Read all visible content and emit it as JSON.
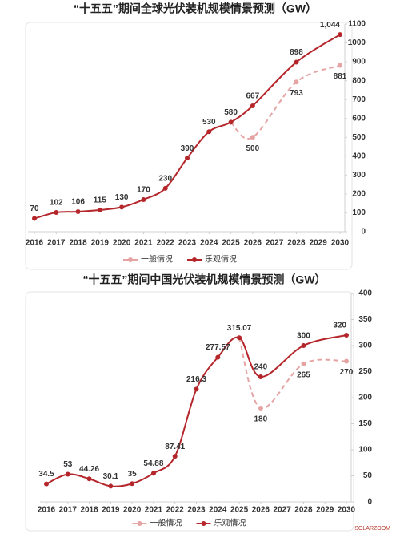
{
  "chart_data": [
    {
      "type": "line",
      "title": "“十五五”期间全球光伏装机规模情景预测（GW）",
      "x": [
        2016,
        2017,
        2018,
        2019,
        2020,
        2021,
        2022,
        2023,
        2024,
        2025,
        2026,
        2028,
        2030
      ],
      "xlim": [
        2016,
        2030
      ],
      "xticks": [
        2016,
        2017,
        2018,
        2019,
        2020,
        2021,
        2022,
        2023,
        2024,
        2025,
        2026,
        2027,
        2028,
        2029,
        2030
      ],
      "ylim": [
        0,
        1100
      ],
      "yticks": [
        0,
        100,
        200,
        300,
        400,
        500,
        600,
        700,
        800,
        900,
        1000,
        1100
      ],
      "y_axis_side": "right",
      "grid": false,
      "legend": "bottom",
      "series": [
        {
          "name": "一般情况",
          "color": "#e6a3a3",
          "dashed": true,
          "values": [
            null,
            null,
            null,
            null,
            null,
            null,
            null,
            null,
            null,
            580,
            500,
            793,
            881
          ],
          "value_labels": [
            null,
            null,
            null,
            null,
            null,
            null,
            null,
            null,
            null,
            null,
            "500",
            "793",
            "881"
          ]
        },
        {
          "name": "乐观情况",
          "color": "#b5262b",
          "dashed": false,
          "values": [
            70,
            102,
            106,
            115,
            130,
            170,
            230,
            390,
            530,
            580,
            667,
            898,
            1044
          ],
          "value_labels": [
            "70",
            "102",
            "106",
            "115",
            "130",
            "170",
            "230",
            "390",
            "530",
            "580",
            "667",
            "898",
            "1,044"
          ]
        }
      ]
    },
    {
      "type": "line",
      "title": "“十五五”期间中国光伏装机规模情景预测（GW）",
      "x": [
        2016,
        2017,
        2018,
        2019,
        2020,
        2021,
        2022,
        2023,
        2024,
        2025,
        2026,
        2028,
        2030
      ],
      "xlim": [
        2016,
        2030
      ],
      "xticks": [
        2016,
        2017,
        2018,
        2019,
        2020,
        2021,
        2022,
        2023,
        2024,
        2025,
        2026,
        2027,
        2028,
        2029,
        2030
      ],
      "ylim": [
        0,
        400
      ],
      "yticks": [
        0,
        50,
        100,
        150,
        200,
        250,
        300,
        350,
        400
      ],
      "y_axis_side": "right",
      "grid": false,
      "legend": "bottom",
      "series": [
        {
          "name": "一般情况",
          "color": "#e6a3a3",
          "dashed": true,
          "values": [
            null,
            null,
            null,
            null,
            null,
            null,
            null,
            null,
            null,
            315.07,
            180,
            265,
            270
          ],
          "value_labels": [
            null,
            null,
            null,
            null,
            null,
            null,
            null,
            null,
            null,
            null,
            "180",
            "265",
            "270"
          ]
        },
        {
          "name": "乐观情况",
          "color": "#b5262b",
          "dashed": false,
          "values": [
            34.5,
            53,
            44.26,
            30.1,
            35,
            54.88,
            87.41,
            216.3,
            277.57,
            315.07,
            240,
            300,
            320
          ],
          "value_labels": [
            "34.5",
            "53",
            "44.26",
            "30.1",
            "35",
            "54.88",
            "87.41",
            "216.3",
            "277.57",
            "315.07",
            "240",
            "300",
            "320"
          ]
        }
      ]
    }
  ],
  "watermark": "SOLARZOOM"
}
